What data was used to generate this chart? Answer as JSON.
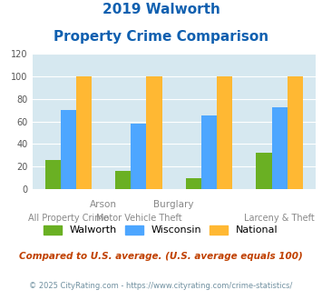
{
  "title_line1": "2019 Walworth",
  "title_line2": "Property Crime Comparison",
  "walworth": [
    26,
    16,
    10,
    32
  ],
  "wisconsin": [
    70,
    58,
    65,
    73
  ],
  "national": [
    100,
    100,
    100,
    100
  ],
  "walworth_color": "#6ab023",
  "wisconsin_color": "#4da6ff",
  "national_color": "#ffb833",
  "bg_color": "#d6e8f0",
  "ylim": [
    0,
    120
  ],
  "yticks": [
    0,
    20,
    40,
    60,
    80,
    100,
    120
  ],
  "top_labels": [
    "",
    "Arson",
    "Burglary",
    ""
  ],
  "bottom_labels": [
    "All Property Crime",
    "Motor Vehicle Theft",
    "",
    "Larceny & Theft"
  ],
  "footnote": "Compared to U.S. average. (U.S. average equals 100)",
  "copyright": "© 2025 CityRating.com - https://www.cityrating.com/crime-statistics/",
  "title_color": "#1060b0",
  "footnote_color": "#c04000",
  "copyright_color": "#7090a0"
}
